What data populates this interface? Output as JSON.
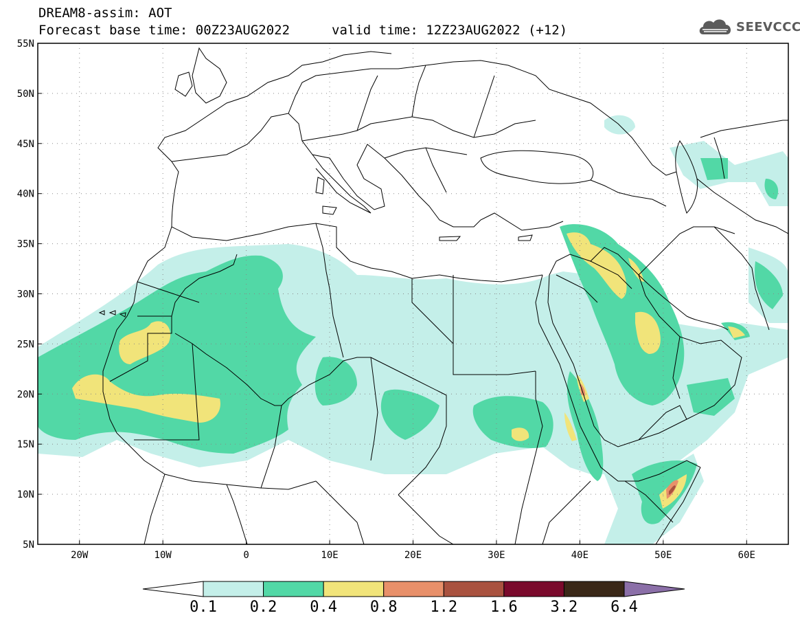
{
  "header": {
    "title_line1": "DREAM8-assim: AOT",
    "title_line2a": "Forecast base time: 00Z23AUG2022",
    "title_line2b": "valid time: 12Z23AUG2022 (+12)",
    "logo_text": "SEEVCCC",
    "logo_icon": "cloud-icon"
  },
  "map": {
    "lon_range": [
      -25,
      65
    ],
    "lat_range": [
      5,
      55
    ],
    "lon_ticks": [
      {
        "value": -20,
        "label": "20W"
      },
      {
        "value": -10,
        "label": "10W"
      },
      {
        "value": 0,
        "label": "0"
      },
      {
        "value": 10,
        "label": "10E"
      },
      {
        "value": 20,
        "label": "20E"
      },
      {
        "value": 30,
        "label": "30E"
      },
      {
        "value": 40,
        "label": "40E"
      },
      {
        "value": 50,
        "label": "50E"
      },
      {
        "value": 60,
        "label": "60E"
      }
    ],
    "lat_ticks": [
      {
        "value": 5,
        "label": "5N"
      },
      {
        "value": 10,
        "label": "10N"
      },
      {
        "value": 15,
        "label": "15N"
      },
      {
        "value": 20,
        "label": "20N"
      },
      {
        "value": 25,
        "label": "25N"
      },
      {
        "value": 30,
        "label": "30N"
      },
      {
        "value": 35,
        "label": "35N"
      },
      {
        "value": 40,
        "label": "40N"
      },
      {
        "value": 45,
        "label": "45N"
      },
      {
        "value": 50,
        "label": "50N"
      },
      {
        "value": 55,
        "label": "55N"
      }
    ],
    "grid": "dotted"
  },
  "colorbar": {
    "labels": [
      "0.1",
      "0.2",
      "0.4",
      "0.8",
      "1.2",
      "1.6",
      "3.2",
      "6.4"
    ],
    "colors": [
      "#ffffff",
      "#c4efe9",
      "#52d8a6",
      "#f1e47a",
      "#e8906a",
      "#a9523f",
      "#7a0a2c",
      "#3a2818",
      "#8b6fa8"
    ]
  }
}
